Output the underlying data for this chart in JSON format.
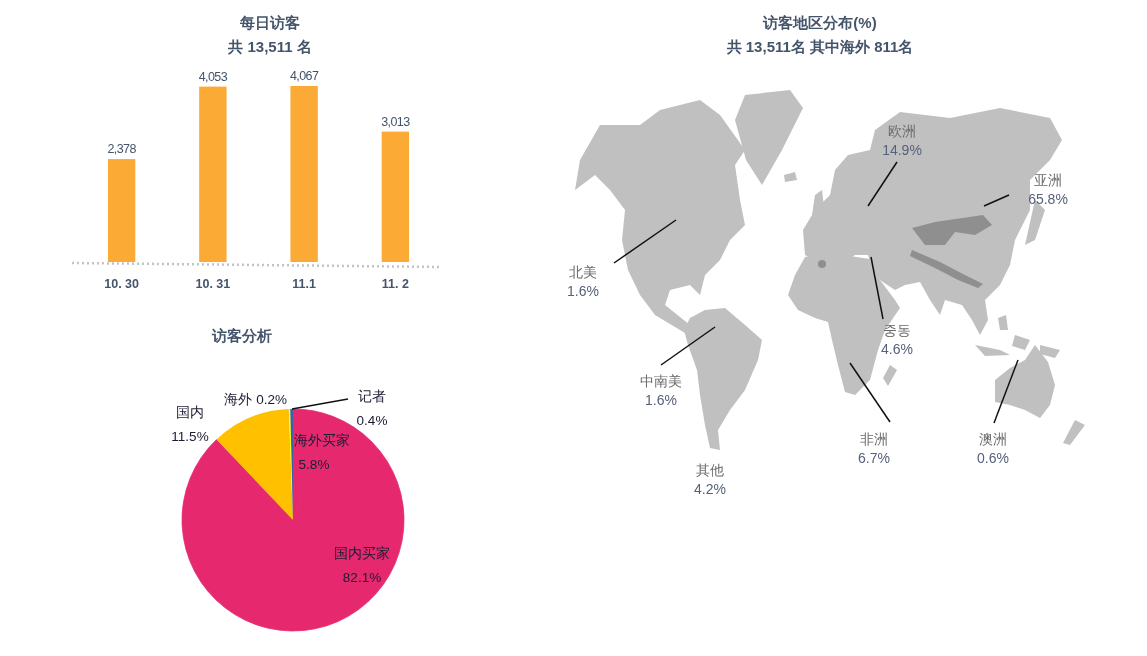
{
  "chart_data": [
    {
      "type": "bar",
      "title": "每日访客",
      "subtitle": "共 13,511 名",
      "categories": [
        "10. 30",
        "10. 31",
        "11.1",
        "11. 2"
      ],
      "values": [
        2378,
        4053,
        4067,
        3013
      ],
      "value_labels": [
        "2,378",
        "4,053",
        "4,067",
        "3,013"
      ],
      "color": "#fbaa35"
    },
    {
      "type": "pie",
      "title": "访客分析",
      "categories": [
        "海外买家",
        "国内买家",
        "国内",
        "海外",
        "记者"
      ],
      "values": [
        5.8,
        82.1,
        11.5,
        0.2,
        0.4
      ],
      "value_labels": [
        "5.8%",
        "82.1%",
        "11.5%",
        "0.2%",
        "0.4%"
      ],
      "colors": [
        "#e6286e",
        "#e6286e",
        "#ffc000",
        "#ffff00",
        "#3a64a8"
      ]
    },
    {
      "type": "other",
      "title": "访客地区分布(%)",
      "subtitle": "共 13,511名 其中海外 811名",
      "annotations": [
        "欧洲\n14.9%",
        "亚洲\n65.8%",
        "北美\n1.6%",
        "중동\n4.6%",
        "中南美\n1.6%",
        "非洲\n6.7%",
        "澳洲\n0.6%",
        "其他\n4.2%"
      ]
    }
  ]
}
